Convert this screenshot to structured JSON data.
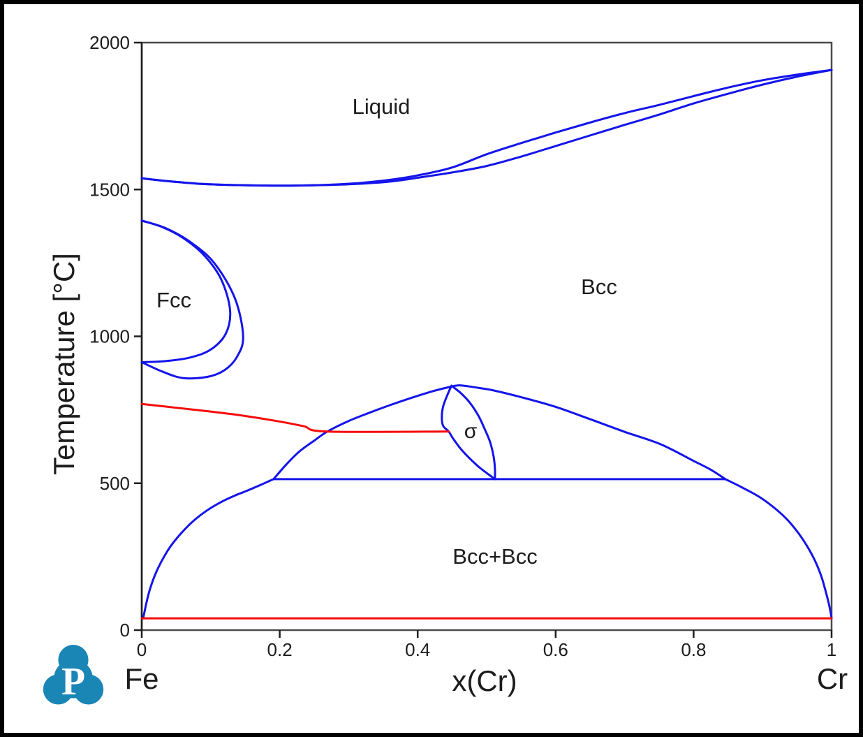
{
  "window": {
    "background": "#ffffff",
    "border_color": "#000000"
  },
  "colors": {
    "blue": "#1414eb",
    "red": "#f70a0a",
    "frame": "#4a4a4a",
    "axis": "#1f1f1f",
    "text": "#1c1c1c",
    "logo_teal": "#1a86b6"
  },
  "logo": {
    "letter": "P"
  },
  "chart_data": {
    "type": "line",
    "description": "Fe-Cr binary phase diagram",
    "title": "",
    "xlabel": "x(Cr)",
    "ylabel": "Temperature [°C]",
    "x_left_label": "Fe",
    "x_right_label": "Cr",
    "xlim": [
      0,
      1
    ],
    "ylim": [
      0,
      2000
    ],
    "grid": false,
    "x_ticks": [
      0,
      0.2,
      0.4,
      0.6,
      0.8,
      1
    ],
    "x_tick_labels": [
      "0",
      "0.2",
      "0.4",
      "0.6",
      "0.8",
      "1"
    ],
    "y_ticks": [
      0,
      500,
      1000,
      1500,
      2000
    ],
    "y_tick_labels": [
      "0",
      "500",
      "1000",
      "1500",
      "2000"
    ],
    "phase_labels": [
      {
        "text": "Liquid",
        "x": 0.347,
        "T": 1781
      },
      {
        "text": "Fcc",
        "x": 0.047,
        "T": 1123
      },
      {
        "text": "Bcc",
        "x": 0.663,
        "T": 1168
      },
      {
        "text": "σ",
        "x": 0.477,
        "T": 673
      },
      {
        "text": "Bcc+Bcc",
        "x": 0.512,
        "T": 250
      }
    ],
    "series": [
      {
        "name": "liquidus",
        "color": "blue",
        "points": [
          [
            0,
            1538
          ],
          [
            0.04,
            1528
          ],
          [
            0.08,
            1520
          ],
          [
            0.12,
            1516
          ],
          [
            0.16,
            1514
          ],
          [
            0.2,
            1513
          ],
          [
            0.24,
            1514
          ],
          [
            0.28,
            1517
          ],
          [
            0.32,
            1523
          ],
          [
            0.36,
            1533
          ],
          [
            0.4,
            1548
          ],
          [
            0.45,
            1575
          ],
          [
            0.5,
            1620
          ],
          [
            0.55,
            1658
          ],
          [
            0.6,
            1694
          ],
          [
            0.65,
            1728
          ],
          [
            0.7,
            1760
          ],
          [
            0.75,
            1788
          ],
          [
            0.8,
            1818
          ],
          [
            0.85,
            1847
          ],
          [
            0.9,
            1872
          ],
          [
            0.95,
            1891
          ],
          [
            1,
            1907
          ]
        ]
      },
      {
        "name": "solidus",
        "color": "blue",
        "points": [
          [
            0,
            1538
          ],
          [
            0.04,
            1528
          ],
          [
            0.08,
            1520
          ],
          [
            0.12,
            1516
          ],
          [
            0.16,
            1514
          ],
          [
            0.2,
            1513
          ],
          [
            0.24,
            1514
          ],
          [
            0.28,
            1516
          ],
          [
            0.32,
            1520
          ],
          [
            0.36,
            1527
          ],
          [
            0.4,
            1540
          ],
          [
            0.45,
            1558
          ],
          [
            0.5,
            1580
          ],
          [
            0.55,
            1612
          ],
          [
            0.6,
            1648
          ],
          [
            0.65,
            1684
          ],
          [
            0.7,
            1720
          ],
          [
            0.75,
            1755
          ],
          [
            0.8,
            1793
          ],
          [
            0.85,
            1826
          ],
          [
            0.9,
            1857
          ],
          [
            0.95,
            1884
          ],
          [
            1,
            1907
          ]
        ]
      },
      {
        "name": "fcc-loop-inner",
        "color": "blue",
        "points": [
          [
            0,
            1394
          ],
          [
            0.03,
            1372
          ],
          [
            0.06,
            1335
          ],
          [
            0.09,
            1277
          ],
          [
            0.115,
            1195
          ],
          [
            0.128,
            1090
          ],
          [
            0.122,
            1010
          ],
          [
            0.1,
            955
          ],
          [
            0.07,
            928
          ],
          [
            0.035,
            916
          ],
          [
            0,
            912
          ]
        ]
      },
      {
        "name": "fcc-loop-outer",
        "color": "blue",
        "points": [
          [
            0,
            1394
          ],
          [
            0.035,
            1368
          ],
          [
            0.07,
            1322
          ],
          [
            0.105,
            1250
          ],
          [
            0.135,
            1130
          ],
          [
            0.147,
            1000
          ],
          [
            0.138,
            930
          ],
          [
            0.12,
            885
          ],
          [
            0.095,
            862
          ],
          [
            0.06,
            858
          ],
          [
            0.03,
            880
          ],
          [
            0,
            912
          ]
        ]
      },
      {
        "name": "bcc-sigma-dome",
        "color": "blue",
        "points": [
          [
            0.191,
            514
          ],
          [
            0.21,
            565
          ],
          [
            0.229,
            609
          ],
          [
            0.25,
            645
          ],
          [
            0.269,
            676
          ],
          [
            0.3,
            712
          ],
          [
            0.33,
            740
          ],
          [
            0.36,
            766
          ],
          [
            0.39,
            790
          ],
          [
            0.42,
            812
          ],
          [
            0.445,
            827
          ],
          [
            0.458,
            833
          ],
          [
            0.47,
            831
          ],
          [
            0.49,
            824
          ],
          [
            0.51,
            816
          ],
          [
            0.55,
            793
          ],
          [
            0.6,
            760
          ],
          [
            0.65,
            718
          ],
          [
            0.7,
            675
          ],
          [
            0.752,
            633
          ],
          [
            0.8,
            576
          ],
          [
            0.825,
            546
          ],
          [
            0.846,
            514
          ]
        ]
      },
      {
        "name": "eutectoid-line-514C",
        "color": "blue",
        "points": [
          [
            0.191,
            514
          ],
          [
            0.846,
            514
          ]
        ]
      },
      {
        "name": "sigma-lens-left",
        "color": "blue",
        "points": [
          [
            0.449,
            832
          ],
          [
            0.443,
            800
          ],
          [
            0.437,
            762
          ],
          [
            0.435,
            725
          ],
          [
            0.437,
            695
          ],
          [
            0.445,
            676
          ],
          [
            0.452,
            650
          ],
          [
            0.465,
            610
          ],
          [
            0.486,
            561
          ],
          [
            0.5,
            535
          ],
          [
            0.512,
            514
          ]
        ]
      },
      {
        "name": "sigma-lens-right",
        "color": "blue",
        "points": [
          [
            0.449,
            832
          ],
          [
            0.462,
            808
          ],
          [
            0.475,
            776
          ],
          [
            0.488,
            730
          ],
          [
            0.498,
            680
          ],
          [
            0.505,
            640
          ],
          [
            0.51,
            592
          ],
          [
            0.512,
            550
          ],
          [
            0.512,
            514
          ]
        ]
      },
      {
        "name": "miscibility-gap-left",
        "color": "blue",
        "points": [
          [
            0.191,
            514
          ],
          [
            0.17,
            492
          ],
          [
            0.15,
            472
          ],
          [
            0.135,
            458
          ],
          [
            0.115,
            436
          ],
          [
            0.095,
            408
          ],
          [
            0.075,
            372
          ],
          [
            0.058,
            332
          ],
          [
            0.042,
            286
          ],
          [
            0.03,
            240
          ],
          [
            0.02,
            192
          ],
          [
            0.012,
            140
          ],
          [
            0.007,
            95
          ],
          [
            0.004,
            62
          ],
          [
            0.002,
            40
          ]
        ]
      },
      {
        "name": "miscibility-gap-right",
        "color": "blue",
        "points": [
          [
            0.846,
            514
          ],
          [
            0.87,
            486
          ],
          [
            0.895,
            454
          ],
          [
            0.915,
            420
          ],
          [
            0.935,
            378
          ],
          [
            0.952,
            330
          ],
          [
            0.965,
            284
          ],
          [
            0.976,
            236
          ],
          [
            0.985,
            184
          ],
          [
            0.991,
            136
          ],
          [
            0.996,
            90
          ],
          [
            0.999,
            55
          ],
          [
            1,
            40
          ]
        ]
      },
      {
        "name": "curie-temperature",
        "color": "red",
        "points": [
          [
            0,
            770
          ],
          [
            0.05,
            757
          ],
          [
            0.1,
            744
          ],
          [
            0.15,
            729
          ],
          [
            0.2,
            710
          ],
          [
            0.235,
            694
          ],
          [
            0.269,
            676
          ],
          [
            0.445,
            676
          ]
        ]
      },
      {
        "name": "neel-temperature",
        "color": "red",
        "points": [
          [
            0,
            40
          ],
          [
            1,
            40
          ]
        ]
      }
    ]
  }
}
